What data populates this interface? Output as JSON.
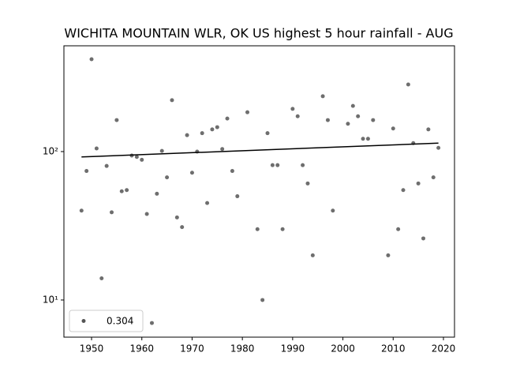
{
  "chart_data": {
    "type": "scatter",
    "title": "WICHITA MOUNTAIN WLR, OK US highest 5 hour rainfall - AUG",
    "x": [
      1948,
      1949,
      1950,
      1951,
      1952,
      1953,
      1954,
      1955,
      1956,
      1957,
      1958,
      1959,
      1960,
      1961,
      1962,
      1963,
      1964,
      1965,
      1966,
      1967,
      1968,
      1969,
      1970,
      1971,
      1972,
      1973,
      1974,
      1975,
      1976,
      1977,
      1978,
      1979,
      1981,
      1983,
      1984,
      1985,
      1986,
      1987,
      1988,
      1990,
      1991,
      1992,
      1993,
      1994,
      1996,
      1997,
      1998,
      2001,
      2002,
      2003,
      2004,
      2005,
      2006,
      2009,
      2010,
      2011,
      2012,
      2013,
      2014,
      2015,
      2016,
      2017,
      2018,
      2019
    ],
    "series": [
      {
        "name": "0.304",
        "color": "#555555",
        "values": [
          40,
          74,
          419,
          105,
          14,
          80,
          39,
          163,
          54,
          55,
          94,
          92,
          88,
          38,
          7,
          52,
          101,
          67,
          222,
          36,
          31,
          129,
          72,
          100,
          133,
          45,
          141,
          146,
          104,
          167,
          74,
          50,
          184,
          30,
          10,
          133,
          81,
          81,
          30,
          194,
          173,
          81,
          61,
          20,
          236,
          163,
          40,
          154,
          203,
          173,
          122,
          122,
          163,
          20,
          143,
          30,
          55,
          283,
          114,
          61,
          26,
          141,
          67,
          106
        ]
      }
    ],
    "trend": {
      "x": [
        1948,
        2019
      ],
      "values": [
        92,
        114
      ],
      "color": "#000000"
    },
    "log_y": true,
    "legend": "lower left",
    "xlim": [
      1944.5,
      2022.2
    ],
    "xticks": [
      1950,
      1960,
      1970,
      1980,
      1990,
      2000,
      2010,
      2020
    ],
    "ylim": [
      5.62,
      516
    ],
    "yticks": [
      {
        "value": 10,
        "label": "10¹"
      },
      {
        "value": 100,
        "label": "10²"
      }
    ]
  }
}
